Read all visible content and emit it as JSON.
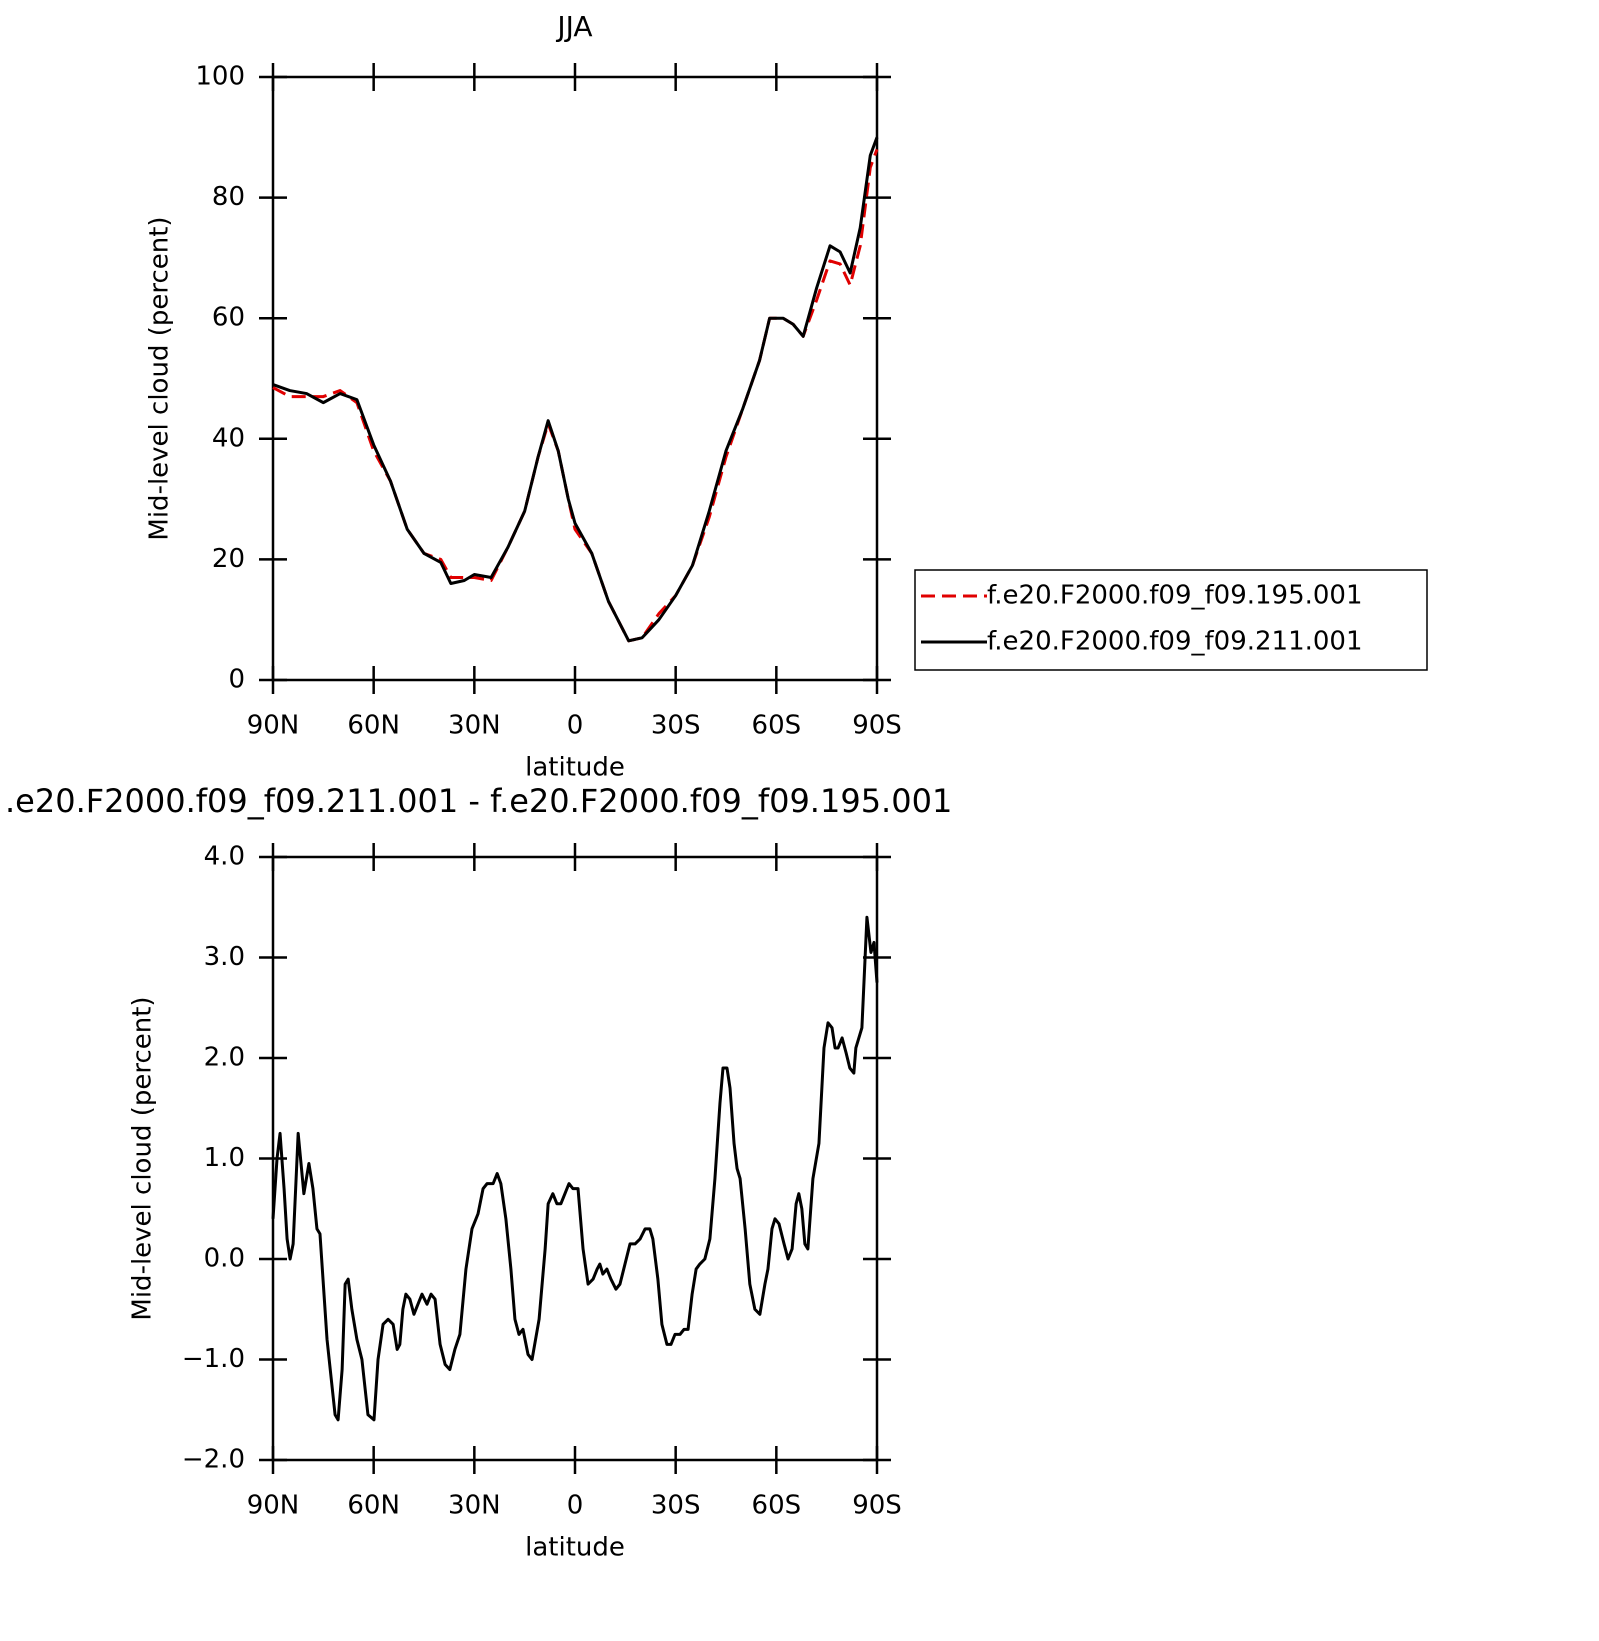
{
  "chart_data": [
    {
      "type": "line",
      "title": "JJA",
      "xlabel": "latitude",
      "ylabel": "Mid-level cloud (percent)",
      "xlim": [
        90,
        -90
      ],
      "ylim": [
        0,
        100
      ],
      "xticks": [
        {
          "value": 90,
          "label": "90N"
        },
        {
          "value": 60,
          "label": "60N"
        },
        {
          "value": 30,
          "label": "30N"
        },
        0,
        {
          "value": -30,
          "label": "30S"
        },
        {
          "value": -60,
          "label": "60S"
        },
        {
          "value": -90,
          "label": "90S"
        }
      ],
      "yticks": [
        0,
        20,
        40,
        60,
        80,
        100
      ],
      "legend": "right",
      "x": [
        90,
        85,
        80,
        75,
        70,
        65,
        60,
        55,
        50,
        45,
        40,
        37,
        33,
        30,
        25,
        20,
        15,
        11,
        8,
        5,
        2,
        0,
        -5,
        -10,
        -16,
        -20,
        -25,
        -30,
        -35,
        -40,
        -45,
        -50,
        -55,
        -58,
        -62,
        -65,
        -68,
        -72,
        -76,
        -79,
        -82,
        -85,
        -88,
        -90
      ],
      "series": [
        {
          "name": "f.e20.F2000.f09_f09.195.001",
          "color": "#e00000",
          "dash": true,
          "values": [
            48.5,
            47,
            47,
            47,
            48,
            46,
            38,
            33,
            25,
            21,
            20,
            17,
            17,
            17,
            16.5,
            22,
            28,
            37,
            42.5,
            38,
            30,
            25,
            21,
            13,
            6.5,
            7,
            11,
            14,
            19,
            27,
            37,
            45,
            53,
            60,
            60,
            59,
            57,
            63,
            69.5,
            69,
            65.5,
            72,
            85,
            88
          ]
        },
        {
          "name": "f.e20.F2000.f09_f09.211.001",
          "color": "#000000",
          "dash": false,
          "values": [
            49,
            48,
            47.5,
            46,
            47.5,
            46.5,
            39,
            33,
            25,
            21,
            19.5,
            16,
            16.5,
            17.5,
            17,
            22,
            28,
            37,
            43,
            38,
            30,
            26,
            21,
            13,
            6.5,
            7,
            10,
            14,
            19,
            28,
            38,
            45,
            53,
            60,
            60,
            59,
            57,
            65,
            72,
            71,
            67.5,
            75,
            87,
            90
          ]
        }
      ]
    },
    {
      "type": "line",
      "title": ".e20.F2000.f09_f09.211.001 - f.e20.F2000.f09_f09.195.001",
      "xlabel": "latitude",
      "ylabel": "Mid-level cloud (percent)",
      "xlim": [
        90,
        -90
      ],
      "ylim": [
        -2,
        4
      ],
      "xticks": [
        {
          "value": 90,
          "label": "90N"
        },
        {
          "value": 60,
          "label": "60N"
        },
        {
          "value": 30,
          "label": "30N"
        },
        0,
        {
          "value": -30,
          "label": "30S"
        },
        {
          "value": -60,
          "label": "60S"
        },
        {
          "value": -90,
          "label": "90S"
        }
      ],
      "yticks": [
        {
          "value": -2,
          "label": "−2.0"
        },
        {
          "value": -1,
          "label": "−1.0"
        },
        {
          "value": 0,
          "label": "0.0"
        },
        {
          "value": 1,
          "label": "1.0"
        },
        {
          "value": 2,
          "label": "2.0"
        },
        {
          "value": 3,
          "label": "3.0"
        },
        {
          "value": 4,
          "label": "4.0"
        }
      ],
      "color": "#000000",
      "x": [
        90,
        88.8,
        87.9,
        86.7,
        85.8,
        84.9,
        84.0,
        82.5,
        80.8,
        79.3,
        78.1,
        76.9,
        76.0,
        75.1,
        73.9,
        71.5,
        70.6,
        69.4,
        68.5,
        67.6,
        66.5,
        65.0,
        63.5,
        61.7,
        59.9,
        58.7,
        57.2,
        55.7,
        54.2,
        53.0,
        52.2,
        51.3,
        50.4,
        49.2,
        48.0,
        46.8,
        45.6,
        44.1,
        42.9,
        41.7,
        40.2,
        38.7,
        37.3,
        35.8,
        34.3,
        32.5,
        30.7,
        28.9,
        27.4,
        26.2,
        24.4,
        23.2,
        22.1,
        20.6,
        19.1,
        17.9,
        16.7,
        15.5,
        14.0,
        12.8,
        10.7,
        8.9,
        8.0,
        6.6,
        5.4,
        4.2,
        3.0,
        1.8,
        0.6,
        -0.9,
        -2.4,
        -3.9,
        -5.4,
        -6.6,
        -7.4,
        -8.3,
        -9.5,
        -10.7,
        -12.2,
        -13.4,
        -14.9,
        -16.4,
        -17.9,
        -19.4,
        -20.9,
        -22.3,
        -23.2,
        -24.7,
        -25.9,
        -27.4,
        -28.6,
        -29.8,
        -31.3,
        -32.5,
        -33.7,
        -34.9,
        -36.1,
        -37.2,
        -38.7,
        -40.2,
        -41.7,
        -43.2,
        -44.1,
        -45.3,
        -46.2,
        -47.4,
        -48.3,
        -49.2,
        -50.7,
        -52.1,
        -53.6,
        -55.1,
        -56.6,
        -57.5,
        -58.7,
        -59.6,
        -60.8,
        -62.3,
        -63.5,
        -64.7,
        -65.9,
        -66.7,
        -67.6,
        -68.5,
        -69.4,
        -70.9,
        -72.7,
        -74.2,
        -75.4,
        -76.6,
        -77.5,
        -78.4,
        -79.6,
        -80.8,
        -81.9,
        -83.1,
        -83.7,
        -85.5,
        -87.0,
        -88.2,
        -89.1,
        -90
      ],
      "values": [
        0.4,
        1.0,
        1.25,
        0.7,
        0.2,
        0.0,
        0.15,
        1.25,
        0.65,
        0.95,
        0.7,
        0.3,
        0.25,
        -0.2,
        -0.8,
        -1.55,
        -1.6,
        -1.1,
        -0.25,
        -0.2,
        -0.5,
        -0.8,
        -1.0,
        -1.55,
        -1.6,
        -1.0,
        -0.65,
        -0.6,
        -0.65,
        -0.9,
        -0.85,
        -0.5,
        -0.35,
        -0.4,
        -0.55,
        -0.45,
        -0.35,
        -0.45,
        -0.35,
        -0.4,
        -0.85,
        -1.05,
        -1.1,
        -0.9,
        -0.75,
        -0.1,
        0.3,
        0.45,
        0.7,
        0.75,
        0.75,
        0.85,
        0.75,
        0.4,
        -0.1,
        -0.6,
        -0.75,
        -0.7,
        -0.95,
        -1.0,
        -0.6,
        0.1,
        0.55,
        0.65,
        0.55,
        0.55,
        0.65,
        0.75,
        0.7,
        0.7,
        0.1,
        -0.25,
        -0.2,
        -0.1,
        -0.05,
        -0.15,
        -0.1,
        -0.2,
        -0.3,
        -0.25,
        -0.05,
        0.15,
        0.15,
        0.2,
        0.3,
        0.3,
        0.2,
        -0.2,
        -0.65,
        -0.85,
        -0.85,
        -0.75,
        -0.75,
        -0.7,
        -0.7,
        -0.35,
        -0.1,
        -0.05,
        0.0,
        0.2,
        0.8,
        1.55,
        1.9,
        1.9,
        1.7,
        1.15,
        0.9,
        0.8,
        0.3,
        -0.25,
        -0.5,
        -0.55,
        -0.25,
        -0.1,
        0.3,
        0.4,
        0.35,
        0.15,
        0.0,
        0.1,
        0.55,
        0.65,
        0.5,
        0.15,
        0.1,
        0.8,
        1.15,
        2.1,
        2.35,
        2.3,
        2.1,
        2.1,
        2.2,
        2.05,
        1.9,
        1.85,
        2.1,
        2.3,
        3.4,
        3.05,
        3.15,
        2.75
      ]
    }
  ]
}
